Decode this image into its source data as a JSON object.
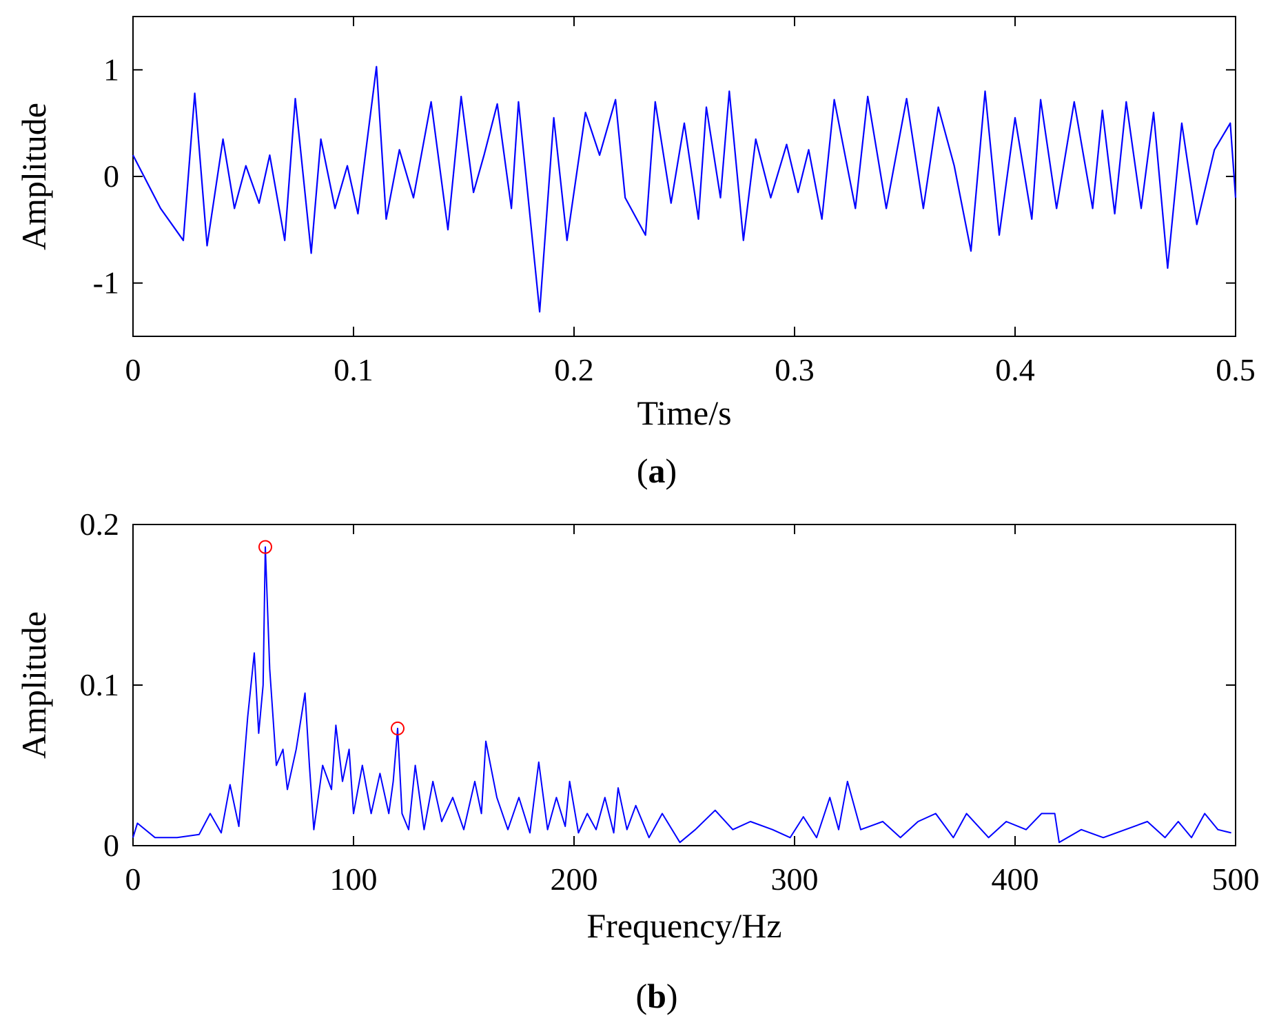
{
  "colors": {
    "signal": "#0000ff",
    "peak_marker": "#ff0000",
    "axis": "#000000"
  },
  "chart_data": [
    {
      "type": "line",
      "panel_label": "a",
      "xlabel": "Time/s",
      "ylabel": "Amplitude",
      "xlim": [
        0,
        0.5
      ],
      "ylim": [
        -1.5,
        1.5
      ],
      "xticks": [
        0,
        0.1,
        0.2,
        0.3,
        0.4,
        0.5
      ],
      "xtick_labels": [
        "0",
        "0.1",
        "0.2",
        "0.3",
        "0.4",
        "0.5"
      ],
      "yticks": [
        -1,
        0,
        1
      ],
      "ytick_labels": [
        "-1",
        "0",
        "1"
      ],
      "series": [
        {
          "name": "signal",
          "x": [
            0,
            0.0125,
            0.0228,
            0.028,
            0.0336,
            0.0408,
            0.046,
            0.0512,
            0.0572,
            0.062,
            0.0688,
            0.0736,
            0.0808,
            0.0852,
            0.0916,
            0.0972,
            0.102,
            0.1104,
            0.1148,
            0.1208,
            0.1272,
            0.1352,
            0.1428,
            0.1488,
            0.1544,
            0.1592,
            0.1652,
            0.1716,
            0.1748,
            0.1844,
            0.1908,
            0.1968,
            0.2052,
            0.2116,
            0.2188,
            0.2232,
            0.2324,
            0.2368,
            0.244,
            0.25,
            0.2564,
            0.26,
            0.2664,
            0.2704,
            0.2768,
            0.2824,
            0.2892,
            0.2964,
            0.3016,
            0.3064,
            0.3124,
            0.318,
            0.3276,
            0.3332,
            0.3416,
            0.3508,
            0.3584,
            0.3652,
            0.3724,
            0.38,
            0.3864,
            0.3928,
            0.4,
            0.4076,
            0.4116,
            0.4188,
            0.4268,
            0.4352,
            0.4396,
            0.4452,
            0.4504,
            0.4572,
            0.4628,
            0.4692,
            0.4756,
            0.4824,
            0.4904,
            0.4976,
            0.5
          ],
          "y": [
            0.2,
            -0.3,
            -0.6,
            0.78,
            -0.65,
            0.35,
            -0.3,
            0.1,
            -0.25,
            0.2,
            -0.6,
            0.73,
            -0.72,
            0.35,
            -0.3,
            0.1,
            -0.35,
            1.03,
            -0.4,
            0.25,
            -0.2,
            0.7,
            -0.5,
            0.75,
            -0.15,
            0.2,
            0.68,
            -0.3,
            0.7,
            -1.27,
            0.55,
            -0.6,
            0.6,
            0.2,
            0.72,
            -0.2,
            -0.55,
            0.7,
            -0.25,
            0.5,
            -0.4,
            0.65,
            -0.2,
            0.8,
            -0.6,
            0.35,
            -0.2,
            0.3,
            -0.15,
            0.25,
            -0.4,
            0.72,
            -0.3,
            0.75,
            -0.3,
            0.73,
            -0.3,
            0.65,
            0.1,
            -0.7,
            0.8,
            -0.55,
            0.55,
            -0.4,
            0.72,
            -0.3,
            0.7,
            -0.3,
            0.62,
            -0.35,
            0.7,
            -0.3,
            0.6,
            -0.86,
            0.5,
            -0.45,
            0.25,
            0.5,
            -0.2
          ]
        }
      ]
    },
    {
      "type": "line",
      "panel_label": "b",
      "xlabel": "Frequency/Hz",
      "ylabel": "Amplitude",
      "xlim": [
        0,
        500
      ],
      "ylim": [
        0,
        0.2
      ],
      "xticks": [
        0,
        100,
        200,
        300,
        400,
        500
      ],
      "xtick_labels": [
        "0",
        "100",
        "200",
        "300",
        "400",
        "500"
      ],
      "yticks": [
        0,
        0.1,
        0.2
      ],
      "ytick_labels": [
        "0",
        "0.1",
        "0.2"
      ],
      "series": [
        {
          "name": "spectrum",
          "x": [
            0,
            2,
            10,
            20,
            30,
            35,
            40,
            44,
            48,
            52,
            55,
            57,
            59,
            60,
            62,
            65,
            68,
            70,
            74,
            78,
            80,
            82,
            86,
            90,
            92,
            95,
            98,
            100,
            104,
            108,
            112,
            116,
            118,
            120,
            122,
            125,
            128,
            132,
            136,
            140,
            145,
            150,
            155,
            158,
            160,
            165,
            170,
            175,
            180,
            184,
            188,
            192,
            196,
            198,
            202,
            206,
            210,
            214,
            218,
            220,
            224,
            228,
            234,
            240,
            248,
            255,
            264,
            272,
            280,
            290,
            298,
            304,
            310,
            316,
            320,
            324,
            330,
            340,
            348,
            356,
            364,
            372,
            378,
            388,
            396,
            405,
            412,
            418,
            420,
            430,
            440,
            450,
            460,
            468,
            474,
            480,
            486,
            492,
            498
          ],
          "y": [
            0.005,
            0.014,
            0.005,
            0.005,
            0.007,
            0.02,
            0.008,
            0.038,
            0.012,
            0.08,
            0.12,
            0.07,
            0.1,
            0.186,
            0.11,
            0.05,
            0.06,
            0.035,
            0.06,
            0.095,
            0.05,
            0.01,
            0.05,
            0.035,
            0.075,
            0.04,
            0.06,
            0.02,
            0.05,
            0.02,
            0.045,
            0.02,
            0.04,
            0.073,
            0.02,
            0.01,
            0.05,
            0.01,
            0.04,
            0.015,
            0.03,
            0.01,
            0.04,
            0.02,
            0.065,
            0.03,
            0.01,
            0.03,
            0.008,
            0.052,
            0.01,
            0.03,
            0.012,
            0.04,
            0.008,
            0.02,
            0.01,
            0.03,
            0.008,
            0.036,
            0.01,
            0.025,
            0.005,
            0.02,
            0.002,
            0.01,
            0.022,
            0.01,
            0.015,
            0.01,
            0.005,
            0.018,
            0.005,
            0.03,
            0.01,
            0.04,
            0.01,
            0.015,
            0.005,
            0.015,
            0.02,
            0.005,
            0.02,
            0.005,
            0.015,
            0.01,
            0.02,
            0.02,
            0.002,
            0.01,
            0.005,
            0.01,
            0.015,
            0.005,
            0.015,
            0.005,
            0.02,
            0.01,
            0.008
          ]
        }
      ],
      "marked_peaks": [
        {
          "x": 60,
          "y": 0.186
        },
        {
          "x": 120,
          "y": 0.073
        }
      ]
    }
  ]
}
